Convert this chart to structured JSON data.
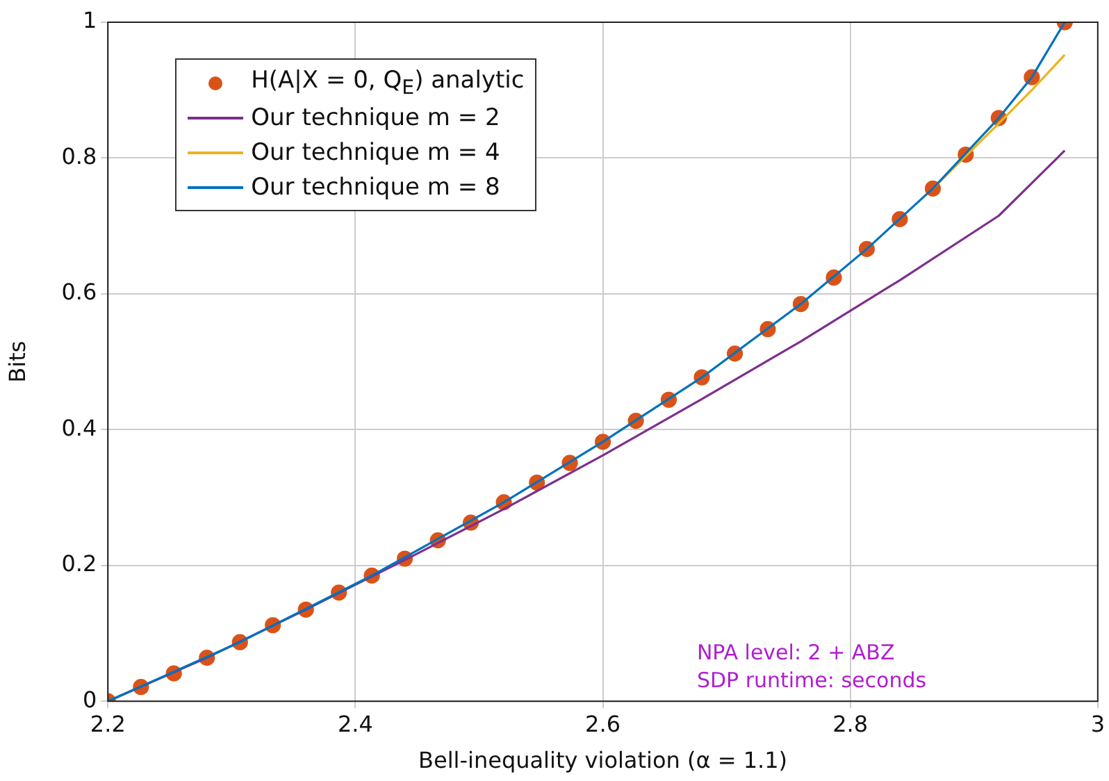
{
  "chart_data": {
    "type": "line",
    "xlabel": "Bell-inequality violation (α = 1.1)",
    "ylabel": "Bits",
    "xlim": [
      2.2,
      3
    ],
    "xticks": [
      2.2,
      2.4,
      2.6,
      2.8,
      3
    ],
    "ylim": [
      0,
      1
    ],
    "yticks": [
      0,
      0.2,
      0.4,
      0.6,
      0.8,
      1
    ],
    "grid": true,
    "legend": "top left",
    "annotations": [
      "NPA level: 2 + ABZ",
      "SDP runtime: seconds"
    ],
    "series": [
      {
        "name": "H(A|X = 0, Q$_{E}$) analytic",
        "type": "scatter",
        "marker": "circle",
        "color": "#d95319",
        "x": [
          2.2,
          2.2267,
          2.2533,
          2.28,
          2.3067,
          2.3333,
          2.36,
          2.3867,
          2.4133,
          2.44,
          2.4667,
          2.4933,
          2.52,
          2.5467,
          2.5733,
          2.6,
          2.6267,
          2.6533,
          2.68,
          2.7067,
          2.7333,
          2.76,
          2.7867,
          2.8133,
          2.84,
          2.8667,
          2.8933,
          2.92,
          2.9467,
          2.9733
        ],
        "values": [
          0,
          0.021,
          0.041,
          0.064,
          0.087,
          0.112,
          0.135,
          0.16,
          0.185,
          0.21,
          0.237,
          0.263,
          0.293,
          0.322,
          0.351,
          0.382,
          0.413,
          0.444,
          0.477,
          0.512,
          0.548,
          0.585,
          0.624,
          0.666,
          0.71,
          0.755,
          0.805,
          0.859,
          0.919,
          1.0
        ]
      },
      {
        "name": "Our technique m = 2",
        "marker": "none",
        "color": "#7e2f8e",
        "x": [
          2.2,
          2.28,
          2.36,
          2.44,
          2.52,
          2.6,
          2.68,
          2.76,
          2.84,
          2.92,
          2.9733
        ],
        "values": [
          0,
          0.064,
          0.135,
          0.208,
          0.283,
          0.362,
          0.445,
          0.53,
          0.62,
          0.715,
          0.811
        ]
      },
      {
        "name": "Our technique m = 4",
        "marker": "none",
        "color": "#edb120",
        "x": [
          2.8667,
          2.92,
          2.9467,
          2.9733
        ],
        "values": [
          0.755,
          0.851,
          0.9,
          0.952
        ]
      },
      {
        "name": "Our technique m = 8",
        "marker": "none",
        "color": "#0072bd",
        "x": [
          2.2,
          2.3067,
          2.4133,
          2.52,
          2.6,
          2.68,
          2.76,
          2.8133,
          2.8667,
          2.92,
          2.9467,
          2.9733
        ],
        "values": [
          0,
          0.087,
          0.185,
          0.293,
          0.382,
          0.477,
          0.585,
          0.666,
          0.755,
          0.859,
          0.919,
          1.0
        ]
      }
    ]
  }
}
